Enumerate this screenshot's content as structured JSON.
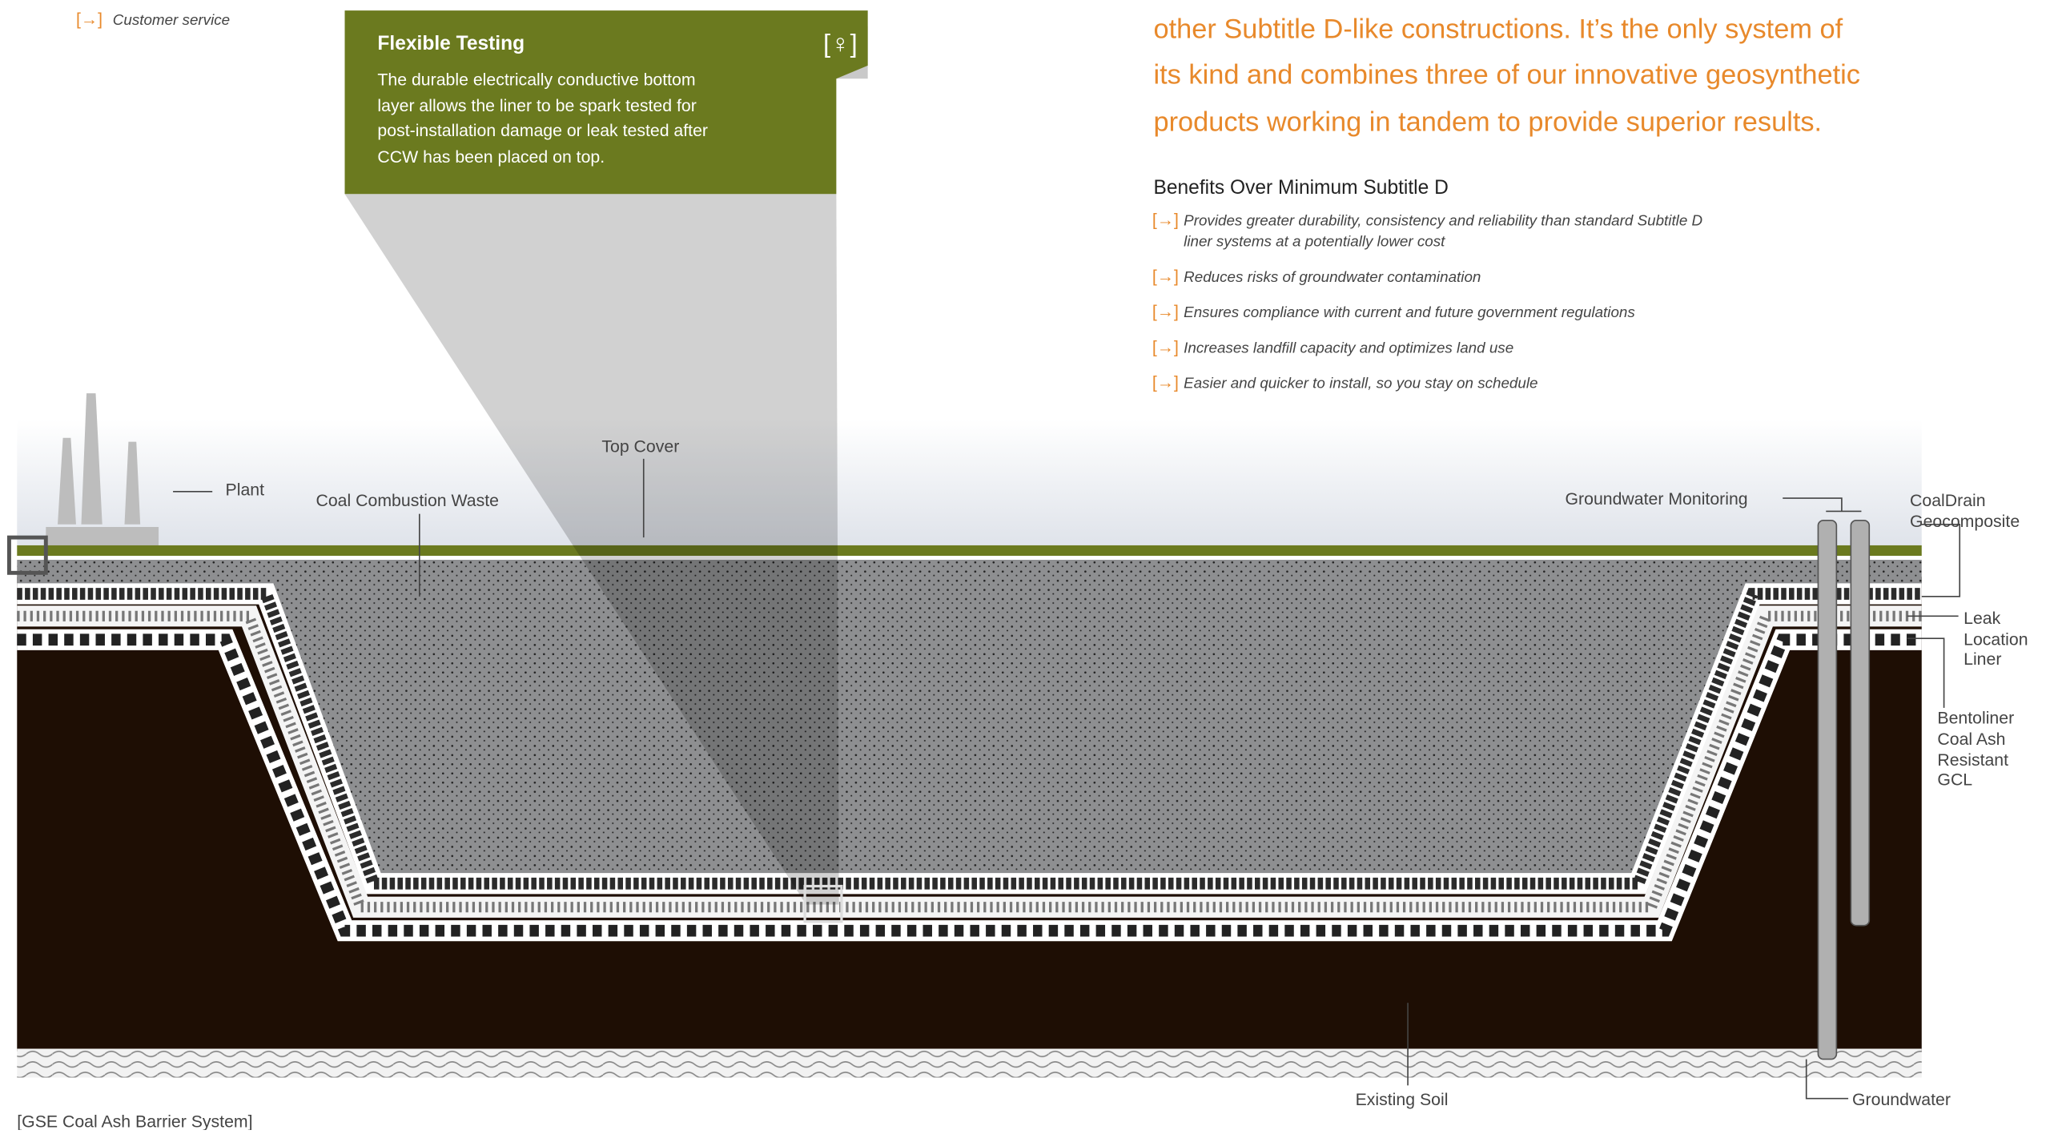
{
  "nav": {
    "bullet": "[→]",
    "text": "Customer service"
  },
  "callout": {
    "title": "Flexible Testing",
    "icon": "[♀]",
    "body": [
      "The durable electrically conductive bottom",
      "layer allows the liner to be spark tested for",
      "post-installation damage or leak tested after",
      "CCW has been placed on top."
    ]
  },
  "intro": [
    "other Subtitle D-like constructions. It’s the only system of",
    "its kind and combines three of our innovative geosynthetic",
    "products working in tandem to provide superior results."
  ],
  "benefits": {
    "heading": "Benefits Over Minimum Subtitle D",
    "bullet": "[→]",
    "items": [
      [
        "Provides greater durability, consistency and reliability than standard Subtitle D",
        "liner systems at a potentially lower cost"
      ],
      [
        "Reduces risks of groundwater contamination"
      ],
      [
        "Ensures compliance with current and future government regulations"
      ],
      [
        "Increases landfill capacity and optimizes land use"
      ],
      [
        "Easier and quicker to install, so you stay on schedule"
      ]
    ]
  },
  "labels": {
    "plant": "Plant",
    "waste": "Coal Combustion Waste",
    "top_cover": "Top Cover",
    "monitoring": "Groundwater Monitoring",
    "geocomposite": [
      "CoalDrain",
      "Geocomposite"
    ],
    "leak_liner": [
      "Leak",
      "Location",
      "Liner"
    ],
    "gcl": [
      "Bentoliner",
      "Coal Ash",
      "Resistant",
      "GCL"
    ],
    "soil": "Existing Soil",
    "groundwater": "Groundwater"
  },
  "caption": "[GSE Coal Ash Barrier System]"
}
